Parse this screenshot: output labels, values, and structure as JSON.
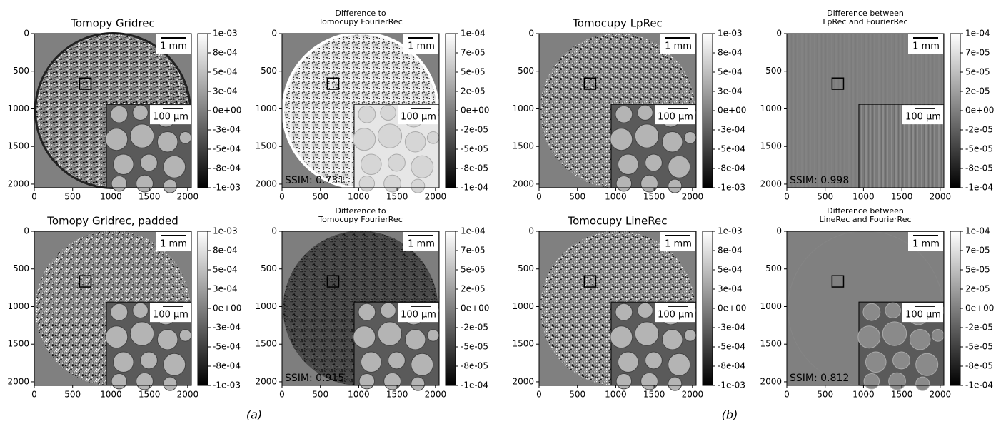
{
  "chart_data": [
    {
      "type": "image",
      "title": "Tomopy Gridrec",
      "xlim": [
        0,
        2048
      ],
      "ylim": [
        2048,
        0
      ],
      "xticks": [
        0,
        500,
        1000,
        1500,
        2000
      ],
      "yticks": [
        0,
        500,
        1000,
        1500,
        2000
      ],
      "clim": [
        -0.001,
        0.001
      ],
      "cticks": [
        {
          "value": 0.001,
          "label": "1e-03"
        },
        {
          "value": 0.00075,
          "label": "8e-04"
        },
        {
          "value": 0.0005,
          "label": "5e-04"
        },
        {
          "value": 0.00025,
          "label": "3e-04"
        },
        {
          "value": 0,
          "label": "0e+00"
        },
        {
          "value": -0.00025,
          "label": "-3e-04"
        },
        {
          "value": -0.0005,
          "label": "-5e-04"
        },
        {
          "value": -0.00075,
          "label": "-8e-04"
        },
        {
          "value": -0.001,
          "label": "-1e-03"
        }
      ],
      "scalebar": "1 mm",
      "inset_scalebar": "100 µm"
    },
    {
      "type": "image",
      "title": [
        "Difference to",
        "Tomocupy FourierRec"
      ],
      "xlim": [
        0,
        2048
      ],
      "ylim": [
        2048,
        0
      ],
      "xticks": [
        0,
        500,
        1000,
        1500,
        2000
      ],
      "yticks": [
        0,
        500,
        1000,
        1500,
        2000
      ],
      "clim": [
        -0.0001,
        0.0001
      ],
      "cticks": [
        {
          "value": 0.0001,
          "label": "1e-04"
        },
        {
          "value": 7.5e-05,
          "label": "7e-05"
        },
        {
          "value": 5e-05,
          "label": "5e-05"
        },
        {
          "value": 2.5e-05,
          "label": "2e-05"
        },
        {
          "value": 0,
          "label": "0e+00"
        },
        {
          "value": -2.5e-05,
          "label": "-2e-05"
        },
        {
          "value": -5e-05,
          "label": "-5e-05"
        },
        {
          "value": -7.5e-05,
          "label": "-8e-05"
        },
        {
          "value": -0.0001,
          "label": "-1e-04"
        }
      ],
      "scalebar": "1 mm",
      "inset_scalebar": "100 µm",
      "annotation": "SSIM: 0.731"
    },
    {
      "type": "image",
      "title": "Tomocupy LpRec",
      "xlim": [
        0,
        2048
      ],
      "ylim": [
        2048,
        0
      ],
      "xticks": [
        0,
        500,
        1000,
        1500,
        2000
      ],
      "yticks": [
        0,
        500,
        1000,
        1500,
        2000
      ],
      "clim": [
        -0.001,
        0.001
      ],
      "cticks": [
        {
          "value": 0.001,
          "label": "1e-03"
        },
        {
          "value": 0.00075,
          "label": "8e-04"
        },
        {
          "value": 0.0005,
          "label": "5e-04"
        },
        {
          "value": 0.00025,
          "label": "3e-04"
        },
        {
          "value": 0,
          "label": "0e+00"
        },
        {
          "value": -0.00025,
          "label": "-3e-04"
        },
        {
          "value": -0.0005,
          "label": "-5e-04"
        },
        {
          "value": -0.00075,
          "label": "-8e-04"
        },
        {
          "value": -0.001,
          "label": "-1e-03"
        }
      ],
      "scalebar": "1 mm",
      "inset_scalebar": "100 µm"
    },
    {
      "type": "image",
      "title": [
        "Difference between",
        "LpRec and FourierRec"
      ],
      "xlim": [
        0,
        2048
      ],
      "ylim": [
        2048,
        0
      ],
      "xticks": [
        0,
        500,
        1000,
        1500,
        2000
      ],
      "yticks": [
        0,
        500,
        1000,
        1500,
        2000
      ],
      "clim": [
        -0.0001,
        0.0001
      ],
      "cticks": [
        {
          "value": 0.0001,
          "label": "1e-04"
        },
        {
          "value": 7.5e-05,
          "label": "7e-05"
        },
        {
          "value": 5e-05,
          "label": "5e-05"
        },
        {
          "value": 2.5e-05,
          "label": "2e-05"
        },
        {
          "value": 0,
          "label": "0e+00"
        },
        {
          "value": -2.5e-05,
          "label": "-2e-05"
        },
        {
          "value": -5e-05,
          "label": "-5e-05"
        },
        {
          "value": -7.5e-05,
          "label": "-8e-05"
        },
        {
          "value": -0.0001,
          "label": "-1e-04"
        }
      ],
      "scalebar": "1 mm",
      "inset_scalebar": "100 µm",
      "annotation": "SSIM: 0.998"
    },
    {
      "type": "image",
      "title": "Tomopy Gridrec, padded",
      "xlim": [
        0,
        2048
      ],
      "ylim": [
        2048,
        0
      ],
      "xticks": [
        0,
        500,
        1000,
        1500,
        2000
      ],
      "yticks": [
        0,
        500,
        1000,
        1500,
        2000
      ],
      "clim": [
        -0.001,
        0.001
      ],
      "cticks": [
        {
          "value": 0.001,
          "label": "1e-03"
        },
        {
          "value": 0.00075,
          "label": "8e-04"
        },
        {
          "value": 0.0005,
          "label": "5e-04"
        },
        {
          "value": 0.00025,
          "label": "3e-04"
        },
        {
          "value": 0,
          "label": "0e+00"
        },
        {
          "value": -0.00025,
          "label": "-3e-04"
        },
        {
          "value": -0.0005,
          "label": "-5e-04"
        },
        {
          "value": -0.00075,
          "label": "-8e-04"
        },
        {
          "value": -0.001,
          "label": "-1e-03"
        }
      ],
      "scalebar": "1 mm",
      "inset_scalebar": "100 µm"
    },
    {
      "type": "image",
      "title": [
        "Difference to",
        "Tomocupy FourierRec"
      ],
      "xlim": [
        0,
        2048
      ],
      "ylim": [
        2048,
        0
      ],
      "xticks": [
        0,
        500,
        1000,
        1500,
        2000
      ],
      "yticks": [
        0,
        500,
        1000,
        1500,
        2000
      ],
      "clim": [
        -0.0001,
        0.0001
      ],
      "cticks": [
        {
          "value": 0.0001,
          "label": "1e-04"
        },
        {
          "value": 7.5e-05,
          "label": "7e-05"
        },
        {
          "value": 5e-05,
          "label": "5e-05"
        },
        {
          "value": 2.5e-05,
          "label": "2e-05"
        },
        {
          "value": 0,
          "label": "0e+00"
        },
        {
          "value": -2.5e-05,
          "label": "-2e-05"
        },
        {
          "value": -5e-05,
          "label": "-5e-05"
        },
        {
          "value": -7.5e-05,
          "label": "-8e-05"
        },
        {
          "value": -0.0001,
          "label": "-1e-04"
        }
      ],
      "scalebar": "1 mm",
      "inset_scalebar": "100 µm",
      "annotation": "SSIM: 0.915"
    },
    {
      "type": "image",
      "title": "Tomocupy LineRec",
      "xlim": [
        0,
        2048
      ],
      "ylim": [
        2048,
        0
      ],
      "xticks": [
        0,
        500,
        1000,
        1500,
        2000
      ],
      "yticks": [
        0,
        500,
        1000,
        1500,
        2000
      ],
      "clim": [
        -0.001,
        0.001
      ],
      "cticks": [
        {
          "value": 0.001,
          "label": "1e-03"
        },
        {
          "value": 0.00075,
          "label": "8e-04"
        },
        {
          "value": 0.0005,
          "label": "5e-04"
        },
        {
          "value": 0.00025,
          "label": "3e-04"
        },
        {
          "value": 0,
          "label": "0e+00"
        },
        {
          "value": -0.00025,
          "label": "-3e-04"
        },
        {
          "value": -0.0005,
          "label": "-5e-04"
        },
        {
          "value": -0.00075,
          "label": "-8e-04"
        },
        {
          "value": -0.001,
          "label": "-1e-03"
        }
      ],
      "scalebar": "1 mm",
      "inset_scalebar": "100 µm"
    },
    {
      "type": "image",
      "title": [
        "Difference between",
        "LineRec and FourierRec"
      ],
      "xlim": [
        0,
        2048
      ],
      "ylim": [
        2048,
        0
      ],
      "xticks": [
        0,
        500,
        1000,
        1500,
        2000
      ],
      "yticks": [
        0,
        500,
        1000,
        1500,
        2000
      ],
      "clim": [
        -0.0001,
        0.0001
      ],
      "cticks": [
        {
          "value": 0.0001,
          "label": "1e-04"
        },
        {
          "value": 7.5e-05,
          "label": "7e-05"
        },
        {
          "value": 5e-05,
          "label": "5e-05"
        },
        {
          "value": 2.5e-05,
          "label": "2e-05"
        },
        {
          "value": 0,
          "label": "0e+00"
        },
        {
          "value": -2.5e-05,
          "label": "-2e-05"
        },
        {
          "value": -5e-05,
          "label": "-5e-05"
        },
        {
          "value": -7.5e-05,
          "label": "-8e-05"
        },
        {
          "value": -0.0001,
          "label": "-1e-04"
        }
      ],
      "scalebar": "1 mm",
      "inset_scalebar": "100 µm",
      "annotation": "SSIM: 0.812"
    }
  ],
  "panel_labels": [
    "(a)",
    "(b)"
  ]
}
